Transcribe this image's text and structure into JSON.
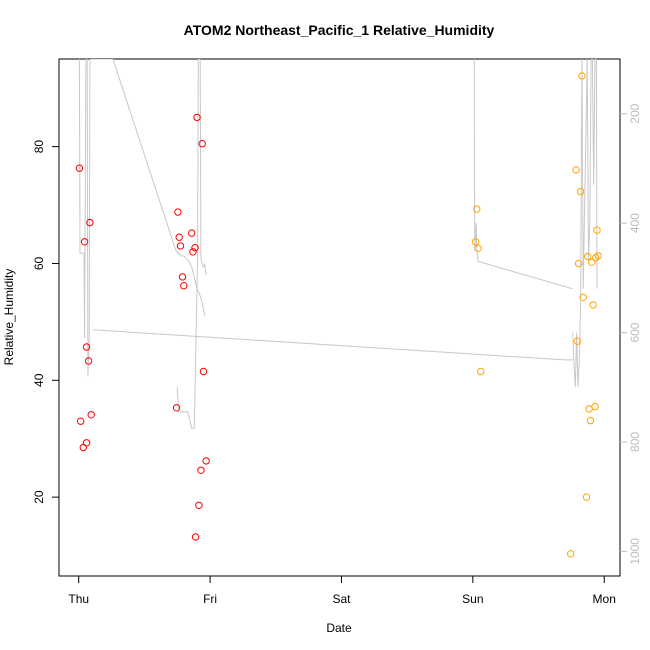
{
  "chart_data": {
    "type": "scatter",
    "title": "ATOM2 Northeast_Pacific_1 Relative_Humidity",
    "xlabel": "Date",
    "ylabel": "Relative_Humidity",
    "x_tick_labels": [
      "Thu",
      "Fri",
      "Sat",
      "Sun",
      "Mon"
    ],
    "x_ticks_days": [
      0,
      1,
      2,
      3,
      4
    ],
    "xlim_days": [
      -0.15,
      4.12
    ],
    "y_ticks": [
      20,
      40,
      60,
      80
    ],
    "ylim": [
      6.5,
      95
    ],
    "right_axis": {
      "ticks": [
        200,
        400,
        600,
        800,
        1000
      ],
      "lim": [
        1045,
        100
      ],
      "color": "#bdbdbd"
    },
    "grid": false,
    "series": [
      {
        "color": "#ff0000",
        "marker": "open-circle",
        "points": [
          [
            0.005,
            76.3
          ],
          [
            0.015,
            33.0
          ],
          [
            0.035,
            28.5
          ],
          [
            0.045,
            63.7
          ],
          [
            0.06,
            29.3
          ],
          [
            0.06,
            45.7
          ],
          [
            0.075,
            43.3
          ],
          [
            0.085,
            67.0
          ],
          [
            0.095,
            34.1
          ],
          [
            0.745,
            35.3
          ],
          [
            0.755,
            68.8
          ],
          [
            0.765,
            64.5
          ],
          [
            0.775,
            63.0
          ],
          [
            0.79,
            57.7
          ],
          [
            0.8,
            56.2
          ],
          [
            0.86,
            65.2
          ],
          [
            0.87,
            62.0
          ],
          [
            0.885,
            62.7
          ],
          [
            0.89,
            13.2
          ],
          [
            0.9,
            85.0
          ],
          [
            0.915,
            18.6
          ],
          [
            0.93,
            24.6
          ],
          [
            0.94,
            80.5
          ],
          [
            0.95,
            41.5
          ],
          [
            0.97,
            26.2
          ]
        ]
      },
      {
        "color": "#ffa500",
        "marker": "open-circle",
        "points": [
          [
            3.02,
            63.7
          ],
          [
            3.03,
            69.3
          ],
          [
            3.04,
            62.6
          ],
          [
            3.06,
            41.5
          ],
          [
            3.745,
            10.3
          ],
          [
            3.785,
            76.0
          ],
          [
            3.795,
            46.7
          ],
          [
            3.805,
            60.0
          ],
          [
            3.82,
            72.3
          ],
          [
            3.83,
            92.1
          ],
          [
            3.84,
            54.2
          ],
          [
            3.865,
            20.0
          ],
          [
            3.875,
            61.2
          ],
          [
            3.885,
            35.1
          ],
          [
            3.895,
            33.1
          ],
          [
            3.905,
            60.2
          ],
          [
            3.915,
            52.9
          ],
          [
            3.93,
            35.5
          ],
          [
            3.935,
            61.0
          ],
          [
            3.945,
            65.7
          ],
          [
            3.955,
            61.3
          ]
        ]
      }
    ],
    "line_series": {
      "color": "#c8c8c8",
      "axis": "right",
      "segments": [
        [
          [
            0.005,
            100
          ],
          [
            0.01,
            455
          ],
          [
            0.04,
            455
          ],
          [
            0.045,
            610
          ],
          [
            0.055,
            100
          ],
          [
            0.065,
            100
          ],
          [
            0.07,
            680
          ],
          [
            0.08,
            610
          ],
          [
            0.085,
            100
          ],
          [
            0.09,
            100
          ],
          [
            0.11,
            100
          ],
          [
            0.115,
            100
          ],
          [
            0.13,
            100
          ],
          [
            0.26,
            100
          ],
          [
            0.74,
            450
          ],
          [
            0.78,
            460
          ],
          [
            0.8,
            460
          ],
          [
            0.82,
            465
          ],
          [
            0.84,
            470
          ],
          [
            0.86,
            480
          ],
          [
            0.88,
            500
          ],
          [
            0.9,
            520
          ],
          [
            0.92,
            530
          ],
          [
            0.94,
            545
          ],
          [
            0.96,
            570
          ]
        ],
        [
          [
            0.11,
            595
          ],
          [
            3.7,
            650
          ],
          [
            3.76,
            650
          ]
        ],
        [
          [
            0.75,
            700
          ],
          [
            0.76,
            745
          ],
          [
            0.8,
            745
          ],
          [
            0.83,
            745
          ],
          [
            0.86,
            775
          ],
          [
            0.88,
            775
          ],
          [
            0.905,
            460
          ],
          [
            0.91,
            100
          ],
          [
            0.925,
            100
          ],
          [
            0.93,
            460
          ],
          [
            0.935,
            470
          ],
          [
            0.95,
            480
          ],
          [
            0.96,
            475
          ],
          [
            0.97,
            495
          ]
        ],
        [
          [
            3.01,
            100
          ],
          [
            3.015,
            450
          ],
          [
            3.025,
            400
          ],
          [
            3.03,
            450
          ],
          [
            3.04,
            470
          ],
          [
            3.76,
            520
          ]
        ],
        [
          [
            3.76,
            600
          ],
          [
            3.77,
            660
          ],
          [
            3.78,
            700
          ],
          [
            3.785,
            650
          ],
          [
            3.79,
            600
          ],
          [
            3.8,
            700
          ],
          [
            3.81,
            650
          ],
          [
            3.82,
            550
          ],
          [
            3.83,
            100
          ],
          [
            3.84,
            520
          ],
          [
            3.87,
            100
          ],
          [
            3.88,
            470
          ],
          [
            3.89,
            400
          ],
          [
            3.9,
            100
          ],
          [
            3.91,
            100
          ],
          [
            3.92,
            330
          ],
          [
            3.93,
            100
          ],
          [
            3.94,
            100
          ],
          [
            3.945,
            520
          ]
        ]
      ]
    }
  }
}
